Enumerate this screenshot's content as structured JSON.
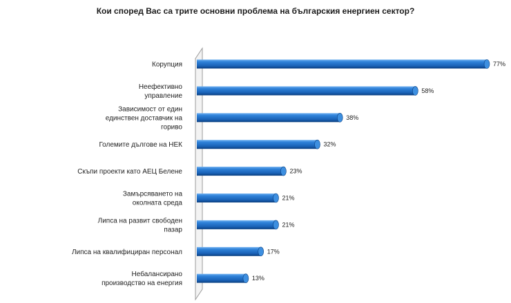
{
  "chart_data": {
    "type": "bar",
    "orientation": "horizontal",
    "title": "Кои според Вас са трите основни проблема на българския енергиен сектор?",
    "categories": [
      [
        "Корупция"
      ],
      [
        "Неефективно",
        "управление"
      ],
      [
        "Зависимост от един",
        "единствен доставчик на",
        "гориво"
      ],
      [
        "Големите дългове на НЕК"
      ],
      [
        "Скъпи проекти като АЕЦ Белене"
      ],
      [
        "Замърсяването на",
        "околната среда"
      ],
      [
        "Липса на развит свободен",
        "пазар"
      ],
      [
        "Липса на квалифициран персонал"
      ],
      [
        "Небалансирано",
        "производство на енергия"
      ]
    ],
    "values": [
      77,
      58,
      38,
      32,
      23,
      21,
      21,
      17,
      13
    ],
    "value_labels": [
      "77%",
      "58%",
      "38%",
      "32%",
      "23%",
      "21%",
      "21%",
      "17%",
      "13%"
    ],
    "unit": "%",
    "xlim": [
      0,
      77
    ],
    "grid": false,
    "legend": "none",
    "bar_style": "3d-cylinder",
    "colors": {
      "bar": "#1f6fc9",
      "bar_dark": "#0b3f7f",
      "bar_light": "#6fb0f0",
      "cap": "#3d8fe0",
      "axis": "#999999"
    }
  }
}
